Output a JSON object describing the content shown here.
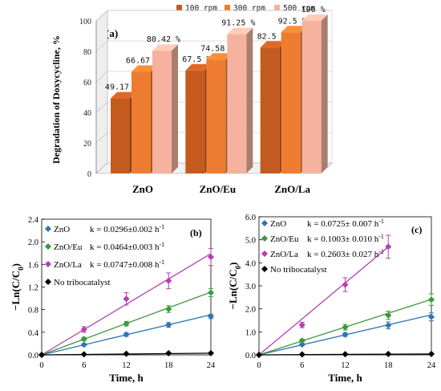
{
  "chart_data": [
    {
      "panel": "(a)",
      "type": "bar",
      "ylabel": "Degradation of Doxycycline, %",
      "ylim": [
        0,
        100
      ],
      "yticks": [
        "0",
        "20",
        "40",
        "60",
        "80",
        "100"
      ],
      "categories": [
        "ZnO",
        "ZnO/Eu",
        "ZnO/La"
      ],
      "legend_position": "top",
      "series": [
        {
          "name": "100 rpm",
          "color": "#c55a1f",
          "values": [
            49.17,
            67.5,
            82.5
          ],
          "labels": [
            "49.17 %",
            "67.5 %",
            "82.5 %"
          ]
        },
        {
          "name": "300 rpm",
          "color": "#ee7c30",
          "values": [
            66.67,
            74.58,
            92.5
          ],
          "labels": [
            "66.67 %",
            "74.58 %",
            "92.5 %"
          ]
        },
        {
          "name": "500 rpm",
          "color": "#f4b29f",
          "values": [
            80.42,
            91.25,
            100
          ],
          "labels": [
            "80.42 %",
            "91.25 %",
            "100 %"
          ]
        }
      ]
    },
    {
      "panel": "(b)",
      "type": "line",
      "xlabel": "Time, h",
      "ylabel": "−Ln(C/C0)",
      "ylabel_main": "−Ln(C/C",
      "ylabel_sub": "0",
      "ylabel_end": ")",
      "xlim": [
        0,
        24
      ],
      "ylim": [
        0,
        2.4
      ],
      "xticks": [
        "0",
        "6",
        "12",
        "18",
        "24"
      ],
      "yticks": [
        "0.0",
        "0.4",
        "0.8",
        "1.2",
        "1.6",
        "2.0",
        "2.4"
      ],
      "series": [
        {
          "name": "ZnO",
          "k_label": "k = 0.0296±0.002  h",
          "color": "#2e75b6",
          "x": [
            0,
            6,
            12,
            18,
            24
          ],
          "y": [
            0,
            0.18,
            0.36,
            0.53,
            0.68
          ],
          "err": [
            0,
            0.02,
            0.03,
            0.04,
            0.04
          ],
          "fit": [
            0,
            0.71
          ]
        },
        {
          "name": "ZnO/Eu",
          "k_label": "k = 0.0464±0.003  h",
          "color": "#3a9a3a",
          "x": [
            0,
            6,
            12,
            18,
            24
          ],
          "y": [
            0,
            0.28,
            0.55,
            0.81,
            1.1
          ],
          "err": [
            0,
            0.03,
            0.04,
            0.06,
            0.07
          ],
          "fit": [
            0,
            1.11
          ]
        },
        {
          "name": "ZnO/La",
          "k_label": "k = 0.0747±0.008  h",
          "color": "#b43fb1",
          "x": [
            0,
            6,
            12,
            18,
            24
          ],
          "y": [
            0,
            0.45,
            0.99,
            1.31,
            1.73
          ],
          "err": [
            0,
            0.05,
            0.11,
            0.14,
            0.15
          ],
          "fit": [
            0,
            1.79
          ]
        },
        {
          "name": "No tribocatalyst",
          "k_label": "",
          "color": "#000000",
          "x": [
            0,
            6,
            12,
            18,
            24
          ],
          "y": [
            0,
            0.01,
            0.02,
            0.03,
            0.03
          ],
          "err": [
            0,
            0,
            0,
            0,
            0
          ],
          "fit": [
            0,
            0.03
          ]
        }
      ],
      "k_unit_sup": "-1"
    },
    {
      "panel": "(c)",
      "type": "line",
      "xlabel": "Time, h",
      "ylabel": "−Ln(C/C0)",
      "ylabel_main": "−Ln(C/C",
      "ylabel_sub": "0",
      "ylabel_end": ")",
      "xlim": [
        0,
        24
      ],
      "ylim": [
        0,
        6.0
      ],
      "xticks": [
        "0",
        "6",
        "12",
        "18",
        "24"
      ],
      "yticks": [
        "0.0",
        "1.0",
        "2.0",
        "3.0",
        "4.0",
        "5.0",
        "6.0"
      ],
      "series": [
        {
          "name": "ZnO",
          "k_label": "k = 0.0725± 0.007  h",
          "color": "#2e75b6",
          "x": [
            0,
            6,
            12,
            18,
            24
          ],
          "y": [
            0,
            0.45,
            0.88,
            1.28,
            1.65
          ],
          "err": [
            0,
            0.05,
            0.08,
            0.15,
            0.17
          ],
          "fit": [
            0,
            1.74
          ]
        },
        {
          "name": "ZnO/Eu",
          "k_label": "k = 0.1003± 0.010  h",
          "color": "#3a9a3a",
          "x": [
            0,
            6,
            12,
            18,
            24
          ],
          "y": [
            0,
            0.62,
            1.2,
            1.72,
            2.4
          ],
          "err": [
            0,
            0.06,
            0.12,
            0.18,
            0.25
          ],
          "fit": [
            0,
            2.41
          ]
        },
        {
          "name": "ZnO/La",
          "k_label": "k = 0.2603± 0.027  h",
          "color": "#b43fb1",
          "x": [
            0,
            6,
            12,
            18
          ],
          "y": [
            0,
            1.3,
            3.05,
            4.7
          ],
          "err": [
            0,
            0.12,
            0.3,
            0.5
          ],
          "fit": [
            0,
            4.69
          ]
        },
        {
          "name": "No tribocatalyst",
          "k_label": "",
          "color": "#000000",
          "x": [
            0,
            6,
            12,
            18,
            24
          ],
          "y": [
            0,
            0.02,
            0.03,
            0.04,
            0.04
          ],
          "err": [
            0,
            0,
            0,
            0,
            0
          ],
          "fit": [
            0,
            0.04
          ]
        }
      ],
      "k_unit_sup": "-1"
    }
  ]
}
